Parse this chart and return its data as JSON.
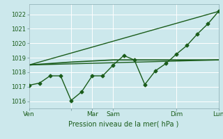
{
  "title": "",
  "xlabel": "Pression niveau de la mer( hPa )",
  "ylabel": "",
  "bg_color": "#cce8ec",
  "grid_color": "#ffffff",
  "line_color": "#1a5c1a",
  "ylim": [
    1015.5,
    1022.7
  ],
  "yticks": [
    1016,
    1017,
    1018,
    1019,
    1020,
    1021,
    1022
  ],
  "x_tick_positions": [
    0,
    4,
    6,
    8,
    14,
    18
  ],
  "x_tick_labels": [
    "Ven",
    "",
    "Mar",
    "Sam",
    "Dim",
    "Lun"
  ],
  "series1": {
    "x": [
      0,
      1,
      2,
      3,
      4,
      5,
      6,
      7,
      8,
      9,
      10,
      11,
      12,
      13,
      14,
      15,
      16,
      17,
      18
    ],
    "y": [
      1017.1,
      1017.25,
      1017.75,
      1017.75,
      1016.05,
      1016.65,
      1017.75,
      1017.75,
      1018.5,
      1019.15,
      1018.85,
      1017.15,
      1018.1,
      1018.6,
      1019.25,
      1019.85,
      1020.65,
      1021.35,
      1022.2
    ],
    "marker": "D",
    "markersize": 2.5,
    "linewidth": 1.0
  },
  "series2": {
    "x": [
      0,
      18
    ],
    "y": [
      1018.5,
      1022.2
    ],
    "linewidth": 1.0
  },
  "series3": {
    "x": [
      0,
      18
    ],
    "y": [
      1018.5,
      1018.85
    ],
    "linewidth": 1.0
  },
  "series4": {
    "x": [
      0,
      4,
      8,
      10,
      14,
      18
    ],
    "y": [
      1018.5,
      1018.7,
      1018.85,
      1018.85,
      1018.85,
      1018.85
    ],
    "linewidth": 1.2
  }
}
